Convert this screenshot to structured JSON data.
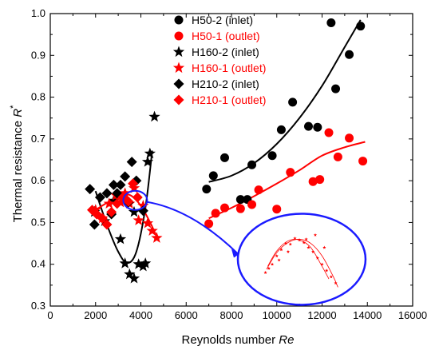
{
  "chart_data": {
    "type": "scatter",
    "xlabel": "Reynolds number",
    "xlabel_italic": "Re",
    "ylabel": "Thermal resistance",
    "ylabel_italic": "R",
    "ylabel_sup": "*",
    "xlim": [
      0,
      16000
    ],
    "ylim": [
      0.3,
      1.0
    ],
    "xticks": [
      0,
      2000,
      4000,
      6000,
      8000,
      10000,
      12000,
      14000,
      16000
    ],
    "yticks": [
      0.3,
      0.4,
      0.5,
      0.6,
      0.7,
      0.8,
      0.9,
      1.0
    ],
    "tick_labels_x": [
      "0",
      "2000",
      "4000",
      "6000",
      "8000",
      "10000",
      "12000",
      "14000",
      "16000"
    ],
    "tick_labels_y": [
      "0.3",
      "0.4",
      "0.5",
      "0.6",
      "0.7",
      "0.8",
      "0.9",
      "1.0"
    ],
    "legend_position": "top-center",
    "grid": false,
    "colors": {
      "black": "#000000",
      "red": "#ff0000",
      "blue": "#1a1aff"
    },
    "series": [
      {
        "name": "H50-2  (inlet)",
        "color": "#000000",
        "marker": "circle",
        "points": [
          [
            6900,
            0.58
          ],
          [
            7200,
            0.612
          ],
          [
            7700,
            0.655
          ],
          [
            8400,
            0.555
          ],
          [
            8700,
            0.555
          ],
          [
            8900,
            0.638
          ],
          [
            9800,
            0.66
          ],
          [
            10200,
            0.722
          ],
          [
            10700,
            0.788
          ],
          [
            11400,
            0.73
          ],
          [
            11800,
            0.728
          ],
          [
            12400,
            0.978
          ],
          [
            12600,
            0.82
          ],
          [
            13200,
            0.902
          ],
          [
            13700,
            0.97
          ]
        ],
        "fit": [
          [
            7000,
            0.597
          ],
          [
            8000,
            0.612
          ],
          [
            9000,
            0.642
          ],
          [
            10000,
            0.688
          ],
          [
            11000,
            0.75
          ],
          [
            12000,
            0.827
          ],
          [
            13000,
            0.92
          ],
          [
            13700,
            0.985
          ]
        ]
      },
      {
        "name": "H50-1  (outlet)",
        "color": "#ff0000",
        "marker": "circle",
        "points": [
          [
            7000,
            0.497
          ],
          [
            7300,
            0.522
          ],
          [
            7700,
            0.535
          ],
          [
            8400,
            0.533
          ],
          [
            8900,
            0.543
          ],
          [
            9200,
            0.578
          ],
          [
            10000,
            0.532
          ],
          [
            10600,
            0.62
          ],
          [
            11600,
            0.598
          ],
          [
            11900,
            0.603
          ],
          [
            12300,
            0.715
          ],
          [
            12700,
            0.657
          ],
          [
            13200,
            0.702
          ],
          [
            13800,
            0.647
          ]
        ],
        "fit": [
          [
            7000,
            0.51
          ],
          [
            8000,
            0.535
          ],
          [
            9000,
            0.563
          ],
          [
            10000,
            0.593
          ],
          [
            11000,
            0.625
          ],
          [
            12000,
            0.66
          ],
          [
            13000,
            0.68
          ],
          [
            13900,
            0.693
          ]
        ]
      },
      {
        "name": "H160-2  (inlet)",
        "color": "#000000",
        "marker": "star",
        "points": [
          [
            1950,
            0.525
          ],
          [
            2400,
            0.503
          ],
          [
            2800,
            0.552
          ],
          [
            3100,
            0.46
          ],
          [
            3300,
            0.402
          ],
          [
            3500,
            0.376
          ],
          [
            3700,
            0.366
          ],
          [
            3900,
            0.4
          ],
          [
            4100,
            0.395
          ],
          [
            4200,
            0.402
          ],
          [
            4400,
            0.665
          ],
          [
            4300,
            0.645
          ],
          [
            4600,
            0.753
          ],
          [
            3700,
            0.525
          ]
        ],
        "fit": [
          [
            2000,
            0.575
          ],
          [
            2500,
            0.495
          ],
          [
            3000,
            0.43
          ],
          [
            3400,
            0.403
          ],
          [
            3800,
            0.43
          ],
          [
            4200,
            0.535
          ],
          [
            4500,
            0.672
          ]
        ]
      },
      {
        "name": "H160-1  (outlet)",
        "color": "#ff0000",
        "marker": "star",
        "points": [
          [
            2000,
            0.53
          ],
          [
            2300,
            0.51
          ],
          [
            2600,
            0.545
          ],
          [
            2900,
            0.565
          ],
          [
            3100,
            0.548
          ],
          [
            3300,
            0.57
          ],
          [
            3500,
            0.545
          ],
          [
            3700,
            0.582
          ],
          [
            3900,
            0.505
          ],
          [
            4100,
            0.54
          ],
          [
            4300,
            0.498
          ],
          [
            4500,
            0.48
          ],
          [
            4700,
            0.463
          ]
        ],
        "fit": [
          [
            2000,
            0.53
          ],
          [
            2500,
            0.547
          ],
          [
            3000,
            0.56
          ],
          [
            3500,
            0.566
          ],
          [
            4000,
            0.54
          ],
          [
            4500,
            0.49
          ],
          [
            4700,
            0.465
          ]
        ]
      },
      {
        "name": "H210-2  (inlet)",
        "color": "#000000",
        "marker": "diamond",
        "points": [
          [
            1750,
            0.58
          ],
          [
            1950,
            0.495
          ],
          [
            2200,
            0.56
          ],
          [
            2500,
            0.57
          ],
          [
            2800,
            0.59
          ],
          [
            2950,
            0.57
          ],
          [
            3100,
            0.59
          ],
          [
            3300,
            0.61
          ],
          [
            3600,
            0.645
          ],
          [
            3800,
            0.6
          ],
          [
            4100,
            0.528
          ],
          [
            2700,
            0.52
          ],
          [
            3450,
            0.548
          ]
        ],
        "fit": []
      },
      {
        "name": "H210-1  (outlet)",
        "color": "#ff0000",
        "marker": "diamond",
        "points": [
          [
            1850,
            0.53
          ],
          [
            2050,
            0.52
          ],
          [
            2300,
            0.51
          ],
          [
            2500,
            0.495
          ],
          [
            2700,
            0.525
          ],
          [
            2950,
            0.545
          ],
          [
            3200,
            0.56
          ],
          [
            3450,
            0.55
          ],
          [
            3650,
            0.593
          ],
          [
            3850,
            0.56
          ]
        ],
        "fit": []
      }
    ],
    "zoom_annotation": {
      "color": "#1a1aff",
      "source_center": [
        3750,
        0.553
      ],
      "inset_center": [
        11100,
        0.412
      ],
      "inset_points": [
        [
          9500,
          0.38
        ],
        [
          9650,
          0.39
        ],
        [
          9800,
          0.4
        ],
        [
          10000,
          0.42
        ],
        [
          10200,
          0.435
        ],
        [
          10400,
          0.45
        ],
        [
          10600,
          0.448
        ],
        [
          10800,
          0.462
        ],
        [
          11000,
          0.458
        ],
        [
          11200,
          0.452
        ],
        [
          11400,
          0.44
        ],
        [
          11600,
          0.43
        ],
        [
          11800,
          0.415
        ],
        [
          12000,
          0.4
        ],
        [
          12200,
          0.385
        ],
        [
          12400,
          0.37
        ],
        [
          12600,
          0.355
        ],
        [
          10100,
          0.41
        ],
        [
          10500,
          0.43
        ],
        [
          11300,
          0.46
        ],
        [
          11700,
          0.47
        ],
        [
          12100,
          0.44
        ]
      ],
      "inset_fit_a": [
        [
          9550,
          0.388
        ],
        [
          10000,
          0.428
        ],
        [
          10500,
          0.452
        ],
        [
          11000,
          0.46
        ],
        [
          11500,
          0.45
        ],
        [
          12000,
          0.42
        ],
        [
          12500,
          0.37
        ],
        [
          12700,
          0.345
        ]
      ],
      "inset_fit_b": [
        [
          9600,
          0.395
        ],
        [
          10000,
          0.432
        ],
        [
          10500,
          0.456
        ],
        [
          11000,
          0.458
        ],
        [
          11500,
          0.44
        ],
        [
          12000,
          0.395
        ],
        [
          12300,
          0.365
        ]
      ]
    }
  }
}
